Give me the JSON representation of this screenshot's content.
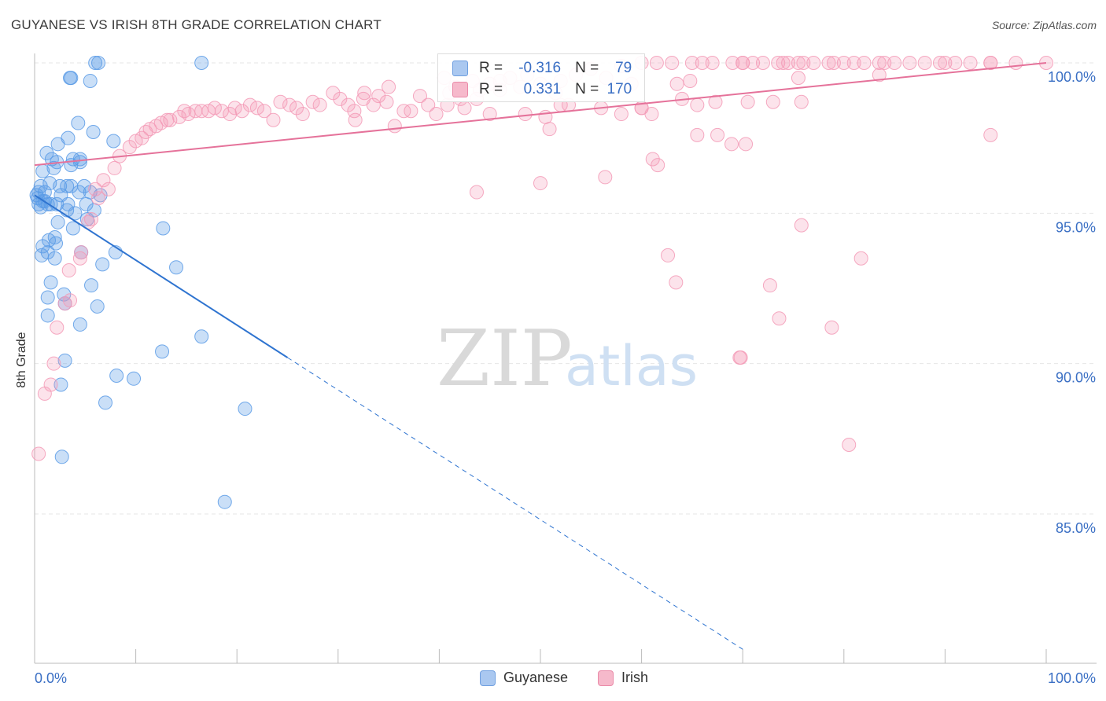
{
  "header": {
    "title": "GUYANESE VS IRISH 8TH GRADE CORRELATION CHART",
    "source": "Source: ZipAtlas.com"
  },
  "watermark": {
    "zip": "ZIP",
    "atlas": "atlas"
  },
  "stats": {
    "rows": [
      {
        "r_label": "R =",
        "r_value": "-0.316",
        "n_label": "N =",
        "n_value": "79",
        "color": "#aac8f0",
        "stroke": "#6f9fe0"
      },
      {
        "r_label": "R =",
        "r_value": "0.331",
        "n_label": "N =",
        "n_value": "170",
        "color": "#f6b9cb",
        "stroke": "#ea8aa8"
      }
    ]
  },
  "legend": {
    "items": [
      {
        "label": "Guyanese",
        "color": "#aac8f0",
        "stroke": "#6f9fe0"
      },
      {
        "label": "Irish",
        "color": "#f6b9cb",
        "stroke": "#ea8aa8"
      }
    ]
  },
  "chart_data": {
    "type": "scatter",
    "title": "GUYANESE VS IRISH 8TH GRADE CORRELATION CHART",
    "xlabel": "",
    "ylabel": "8th Grade",
    "xlim": [
      0,
      100
    ],
    "ylim": [
      80.5,
      100.5
    ],
    "x_tick_labels": [
      "0.0%",
      "100.0%"
    ],
    "y_ticks": [
      85,
      90,
      95,
      100
    ],
    "y_tick_labels": [
      "85.0%",
      "90.0%",
      "95.0%",
      "100.0%"
    ],
    "grid": true,
    "legend_position": "bottom-center",
    "series": [
      {
        "name": "Guyanese",
        "color": "#5b9be6",
        "line_color": "#2f74d0",
        "trend": {
          "x0": 0,
          "y0": 95.6,
          "x1": 25,
          "y1": 90.2,
          "dash_to_x": 70,
          "dash_to_y": 80.5
        },
        "points": [
          [
            6,
            100
          ],
          [
            6.3,
            100
          ],
          [
            16.5,
            100
          ],
          [
            3.5,
            99.5
          ],
          [
            3.6,
            99.5
          ],
          [
            5.5,
            99.4
          ],
          [
            4.3,
            98
          ],
          [
            5.8,
            97.7
          ],
          [
            3.3,
            97.5
          ],
          [
            7.8,
            97.4
          ],
          [
            2.3,
            97.3
          ],
          [
            1.2,
            97
          ],
          [
            1.7,
            96.8
          ],
          [
            3.8,
            96.8
          ],
          [
            2.2,
            96.7
          ],
          [
            4.5,
            96.8
          ],
          [
            3.6,
            96.6
          ],
          [
            4.5,
            96.7
          ],
          [
            1.9,
            96.5
          ],
          [
            0.8,
            96.4
          ],
          [
            0.6,
            95.9
          ],
          [
            1.5,
            96.0
          ],
          [
            2.5,
            95.9
          ],
          [
            3.6,
            95.9
          ],
          [
            4.9,
            95.9
          ],
          [
            1.0,
            95.7
          ],
          [
            0.4,
            95.7
          ],
          [
            2.6,
            95.6
          ],
          [
            4.4,
            95.7
          ],
          [
            5.5,
            95.7
          ],
          [
            6.5,
            95.6
          ],
          [
            0.3,
            95.5
          ],
          [
            0.8,
            95.4
          ],
          [
            1.3,
            95.3
          ],
          [
            1.6,
            95.3
          ],
          [
            2.2,
            95.3
          ],
          [
            3.3,
            95.3
          ],
          [
            0.6,
            95.2
          ],
          [
            4.0,
            95.0
          ],
          [
            5.9,
            95.1
          ],
          [
            5.2,
            94.8
          ],
          [
            2.3,
            94.7
          ],
          [
            3.8,
            94.5
          ],
          [
            12.7,
            94.5
          ],
          [
            2.0,
            94.2
          ],
          [
            1.4,
            94.1
          ],
          [
            2.1,
            94.0
          ],
          [
            0.8,
            93.9
          ],
          [
            1.3,
            93.7
          ],
          [
            2.0,
            93.5
          ],
          [
            0.7,
            93.6
          ],
          [
            4.6,
            93.7
          ],
          [
            8.0,
            93.7
          ],
          [
            6.7,
            93.3
          ],
          [
            14.0,
            93.2
          ],
          [
            1.6,
            92.7
          ],
          [
            1.3,
            92.2
          ],
          [
            5.6,
            92.6
          ],
          [
            2.9,
            92.3
          ],
          [
            3.0,
            92.0
          ],
          [
            6.2,
            91.9
          ],
          [
            1.3,
            91.6
          ],
          [
            4.5,
            91.3
          ],
          [
            16.5,
            90.9
          ],
          [
            12.6,
            90.4
          ],
          [
            3.0,
            90.1
          ],
          [
            8.1,
            89.6
          ],
          [
            9.8,
            89.5
          ],
          [
            2.6,
            89.3
          ],
          [
            7.0,
            88.7
          ],
          [
            20.8,
            88.5
          ],
          [
            2.7,
            86.9
          ],
          [
            18.8,
            85.4
          ],
          [
            0.4,
            95.3
          ],
          [
            1.0,
            95.4
          ],
          [
            3.2,
            95.1
          ],
          [
            5.1,
            95.3
          ],
          [
            3.2,
            95.9
          ],
          [
            0.2,
            95.6
          ]
        ]
      },
      {
        "name": "Irish",
        "color": "#f39ab6",
        "line_color": "#e5729a",
        "trend": {
          "x0": 0,
          "y0": 96.6,
          "x1": 100,
          "y1": 100.0
        },
        "points": [
          [
            0.4,
            87.0
          ],
          [
            1.0,
            89.0
          ],
          [
            1.6,
            89.3
          ],
          [
            1.9,
            90.0
          ],
          [
            2.2,
            91.2
          ],
          [
            3.5,
            92.1
          ],
          [
            3.0,
            92.0
          ],
          [
            3.4,
            93.1
          ],
          [
            4.5,
            93.5
          ],
          [
            4.6,
            93.7
          ],
          [
            5.3,
            94.7
          ],
          [
            5.6,
            94.8
          ],
          [
            6.3,
            95.5
          ],
          [
            6.0,
            95.8
          ],
          [
            7.3,
            95.8
          ],
          [
            6.8,
            96.1
          ],
          [
            7.9,
            96.5
          ],
          [
            8.4,
            96.9
          ],
          [
            9.4,
            97.2
          ],
          [
            10.0,
            97.4
          ],
          [
            10.6,
            97.5
          ],
          [
            11.0,
            97.7
          ],
          [
            11.4,
            97.8
          ],
          [
            12.0,
            97.9
          ],
          [
            12.5,
            98.0
          ],
          [
            13.1,
            98.1
          ],
          [
            13.4,
            98.1
          ],
          [
            14.3,
            98.2
          ],
          [
            14.8,
            98.4
          ],
          [
            15.2,
            98.3
          ],
          [
            15.9,
            98.4
          ],
          [
            16.5,
            98.4
          ],
          [
            17.2,
            98.4
          ],
          [
            17.8,
            98.5
          ],
          [
            18.5,
            98.4
          ],
          [
            19.3,
            98.3
          ],
          [
            19.8,
            98.5
          ],
          [
            20.5,
            98.4
          ],
          [
            21.3,
            98.6
          ],
          [
            22.0,
            98.5
          ],
          [
            22.7,
            98.4
          ],
          [
            23.6,
            98.1
          ],
          [
            24.3,
            98.7
          ],
          [
            25.2,
            98.6
          ],
          [
            25.9,
            98.5
          ],
          [
            26.5,
            98.3
          ],
          [
            27.5,
            98.7
          ],
          [
            28.2,
            98.6
          ],
          [
            29.5,
            99.0
          ],
          [
            30.2,
            98.8
          ],
          [
            31.0,
            98.6
          ],
          [
            31.6,
            98.4
          ],
          [
            32.5,
            98.8
          ],
          [
            33.5,
            98.6
          ],
          [
            34.0,
            98.9
          ],
          [
            34.8,
            98.7
          ],
          [
            35.6,
            97.9
          ],
          [
            36.5,
            98.4
          ],
          [
            37.2,
            98.4
          ],
          [
            38.1,
            98.9
          ],
          [
            38.9,
            98.6
          ],
          [
            39.7,
            98.3
          ],
          [
            40.8,
            98.6
          ],
          [
            41.6,
            99.2
          ],
          [
            42.1,
            98.8
          ],
          [
            43.3,
            99.4
          ],
          [
            44.0,
            99.1
          ],
          [
            45.0,
            99.3
          ],
          [
            46.0,
            99.1
          ],
          [
            47.0,
            99.5
          ],
          [
            48.0,
            99.2
          ],
          [
            48.7,
            99.6
          ],
          [
            50.0,
            99.3
          ],
          [
            51.5,
            99.0
          ],
          [
            52.0,
            99.4
          ],
          [
            53.5,
            99.6
          ],
          [
            55.0,
            99.8
          ],
          [
            56.5,
            99.5
          ],
          [
            58.0,
            99.9
          ],
          [
            59.0,
            99.3
          ],
          [
            60.0,
            100
          ],
          [
            61.5,
            100
          ],
          [
            63.0,
            100
          ],
          [
            65.0,
            100
          ],
          [
            66.0,
            100
          ],
          [
            67.0,
            100
          ],
          [
            69.0,
            100
          ],
          [
            70.0,
            100
          ],
          [
            72.0,
            100
          ],
          [
            74.0,
            100
          ],
          [
            75.5,
            100
          ],
          [
            77.0,
            100
          ],
          [
            78.5,
            100
          ],
          [
            80.0,
            100
          ],
          [
            81.0,
            100
          ],
          [
            82.0,
            100
          ],
          [
            83.5,
            100
          ],
          [
            85.0,
            100
          ],
          [
            86.5,
            100
          ],
          [
            88.0,
            100
          ],
          [
            89.5,
            100
          ],
          [
            91.0,
            100
          ],
          [
            92.5,
            100
          ],
          [
            94.5,
            100
          ],
          [
            97.0,
            100
          ],
          [
            100,
            100
          ],
          [
            70.0,
            100
          ],
          [
            71.0,
            100
          ],
          [
            73.5,
            100
          ],
          [
            74.5,
            100
          ],
          [
            76.0,
            100
          ],
          [
            79.0,
            100
          ],
          [
            84.0,
            100
          ],
          [
            90.0,
            100
          ],
          [
            63.5,
            99.3
          ],
          [
            52.8,
            98.6
          ],
          [
            64.0,
            98.8
          ],
          [
            48.5,
            98.3
          ],
          [
            46.0,
            99.4
          ],
          [
            75.8,
            98.7
          ],
          [
            83.5,
            99.6
          ],
          [
            94.5,
            100
          ],
          [
            60.0,
            98.5
          ],
          [
            60.0,
            98.5
          ],
          [
            70.5,
            98.7
          ],
          [
            58.0,
            98.3
          ],
          [
            56.0,
            98.5
          ],
          [
            52.0,
            98.6
          ],
          [
            43.7,
            98.8
          ],
          [
            45.0,
            98.3
          ],
          [
            42.5,
            98.5
          ],
          [
            50.5,
            98.2
          ],
          [
            65.5,
            98.6
          ],
          [
            67.3,
            98.7
          ],
          [
            61.0,
            98.3
          ],
          [
            35.0,
            99.2
          ],
          [
            40.5,
            99.5
          ],
          [
            41.0,
            99.0
          ],
          [
            50.9,
            97.8
          ],
          [
            67.5,
            97.6
          ],
          [
            65.5,
            97.6
          ],
          [
            68.9,
            97.3
          ],
          [
            94.5,
            97.6
          ],
          [
            61.1,
            96.8
          ],
          [
            61.6,
            96.6
          ],
          [
            56.4,
            96.2
          ],
          [
            50.0,
            96.0
          ],
          [
            43.7,
            95.7
          ],
          [
            75.8,
            94.6
          ],
          [
            62.6,
            93.6
          ],
          [
            81.7,
            93.5
          ],
          [
            63.4,
            92.7
          ],
          [
            72.7,
            92.6
          ],
          [
            69.7,
            90.2
          ],
          [
            69.8,
            90.2
          ],
          [
            73.6,
            91.5
          ],
          [
            78.8,
            91.2
          ],
          [
            75.5,
            99.5
          ],
          [
            80.5,
            87.3
          ],
          [
            64.8,
            99.4
          ],
          [
            70.3,
            97.3
          ],
          [
            73.0,
            98.7
          ],
          [
            31.7,
            98.1
          ],
          [
            32.6,
            99.0
          ]
        ]
      }
    ]
  }
}
